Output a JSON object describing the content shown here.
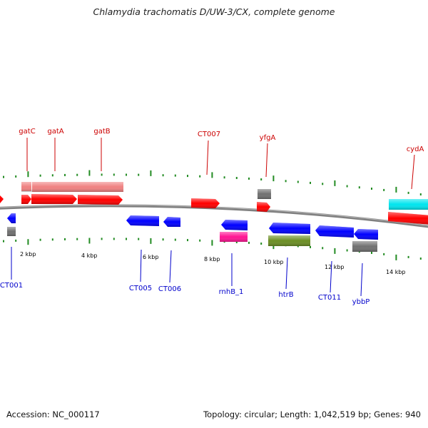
{
  "title": "Chlamydia trachomatis D/UW-3/CX, complete genome",
  "footer": {
    "accession": "Accession: NC_000117",
    "stats": "Topology: circular; Length: 1,042,519 bp; Genes: 940"
  },
  "colors": {
    "forward_strand": "#ff0000",
    "reverse_strand": "#0000ff",
    "label_forward": "#cc0000",
    "label_reverse": "#0000cc",
    "tick": "#228b22",
    "backbone": "#808080",
    "rRNA": "#f08080",
    "tRNA": "#ff1493",
    "gray_feature": "#707070",
    "cyan_feature": "#00e5ee",
    "olive_feature": "#6b8e23"
  },
  "scale_labels": [
    "2 kbp",
    "4 kbp",
    "6 kbp",
    "8 kbp",
    "10 kbp",
    "12 kbp",
    "14 kbp"
  ],
  "gene_labels_forward": [
    "gatC",
    "gatA",
    "gatB",
    "CT007",
    "yfgA",
    "cydA"
  ],
  "gene_labels_reverse": [
    "CT001",
    "CT005",
    "CT006",
    "rnhB_1",
    "htrB",
    "CT011",
    "ybbP"
  ]
}
